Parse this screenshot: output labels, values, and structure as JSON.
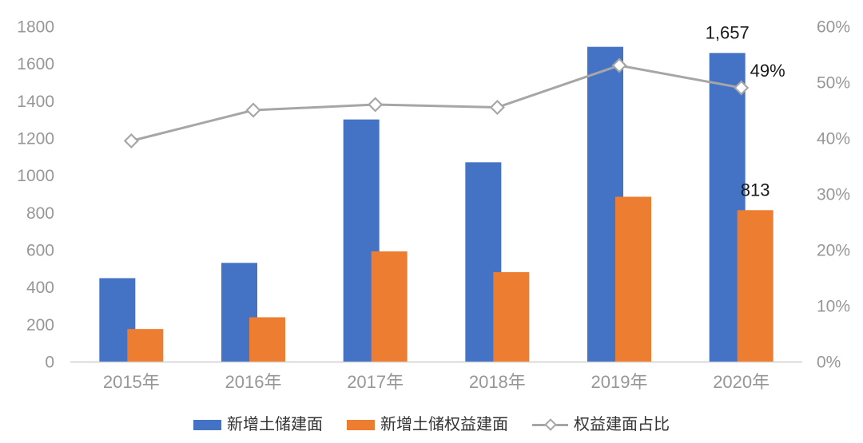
{
  "chart_data": {
    "type": "bar",
    "categories": [
      "2015年",
      "2016年",
      "2017年",
      "2018年",
      "2019年",
      "2020年"
    ],
    "series": [
      {
        "name": "新增土储建面",
        "kind": "bar",
        "axis": "left",
        "color": "#4472C4",
        "values": [
          448,
          530,
          1300,
          1070,
          1690,
          1657
        ]
      },
      {
        "name": "新增土储权益建面",
        "kind": "bar",
        "axis": "left",
        "color": "#ED7D31",
        "values": [
          175,
          238,
          592,
          480,
          885,
          813
        ]
      },
      {
        "name": "权益建面占比",
        "kind": "line",
        "axis": "right",
        "color": "#A6A6A6",
        "marker": "diamond",
        "marker_fill": "#FFFFFF",
        "values": [
          39.5,
          45,
          46,
          45.5,
          53,
          49
        ]
      }
    ],
    "left_axis": {
      "min": 0,
      "max": 1800,
      "step": 200,
      "tick_labels": [
        "0",
        "200",
        "400",
        "600",
        "800",
        "1000",
        "1200",
        "1400",
        "1600",
        "1800"
      ]
    },
    "right_axis": {
      "min": 0,
      "max": 60,
      "step": 10,
      "tick_labels": [
        "0%",
        "10%",
        "20%",
        "30%",
        "40%",
        "50%",
        "60%"
      ]
    },
    "annotations": [
      {
        "series": 0,
        "category_index": 5,
        "text": "1,657"
      },
      {
        "series": 1,
        "category_index": 5,
        "text": "813"
      },
      {
        "series": 2,
        "category_index": 5,
        "text": "49%"
      }
    ],
    "legend_position": "bottom",
    "grid": false
  }
}
